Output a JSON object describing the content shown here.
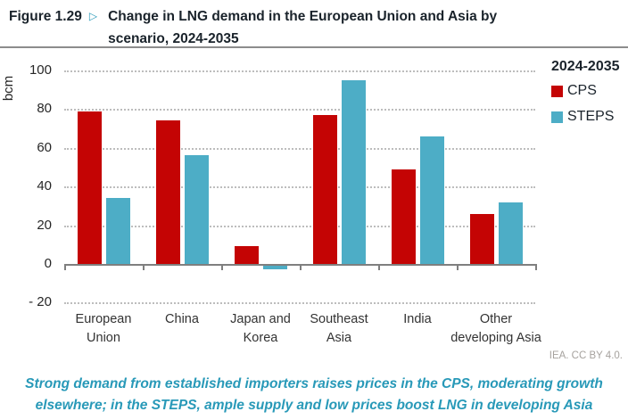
{
  "header": {
    "figure_label": "Figure 1.29",
    "arrow": "▷",
    "title_line1": "Change in LNG demand in the European Union and Asia by",
    "title_line2": "scenario, 2024-2035"
  },
  "chart_data": {
    "type": "bar",
    "title": "Change in LNG demand in the European Union and Asia by scenario, 2024-2035",
    "ylabel": "bcm",
    "ylim": [
      -20,
      100
    ],
    "ytick_values": [
      100,
      80,
      60,
      40,
      20,
      0,
      -20
    ],
    "ytick_labels": [
      "100",
      "80",
      "60",
      "40",
      "20",
      "0",
      "- 20"
    ],
    "grid": "horizontal dotted",
    "legend_position": "right",
    "legend_title": "2024-2035",
    "categories": [
      "European Union",
      "China",
      "Japan and Korea",
      "Southeast Asia",
      "India",
      "Other developing Asia"
    ],
    "category_lines": [
      [
        "European",
        "Union"
      ],
      [
        "China"
      ],
      [
        "Japan and",
        "Korea"
      ],
      [
        "Southeast",
        "Asia"
      ],
      [
        "India"
      ],
      [
        "Other",
        "developing Asia"
      ]
    ],
    "series": [
      {
        "name": "CPS",
        "color": "#c40404",
        "values": [
          79,
          74,
          9,
          77,
          49,
          26
        ]
      },
      {
        "name": "STEPS",
        "color": "#4dadc6",
        "values": [
          34,
          56,
          -2,
          95,
          66,
          32
        ]
      }
    ]
  },
  "footer": {
    "attribution": "IEA. CC BY 4.0.",
    "caption_line1": "Strong demand from established importers raises prices in the CPS, moderating growth",
    "caption_line2": "elsewhere; in the STEPS, ample supply and low prices boost LNG in developing Asia"
  },
  "colors": {
    "cps_red": "#c40404",
    "steps_teal": "#4dadc6",
    "accent_teal": "#2899b8",
    "dark_text": "#1a232b",
    "gridline": "#bdbdbd",
    "axis": "#7f7f7f"
  }
}
